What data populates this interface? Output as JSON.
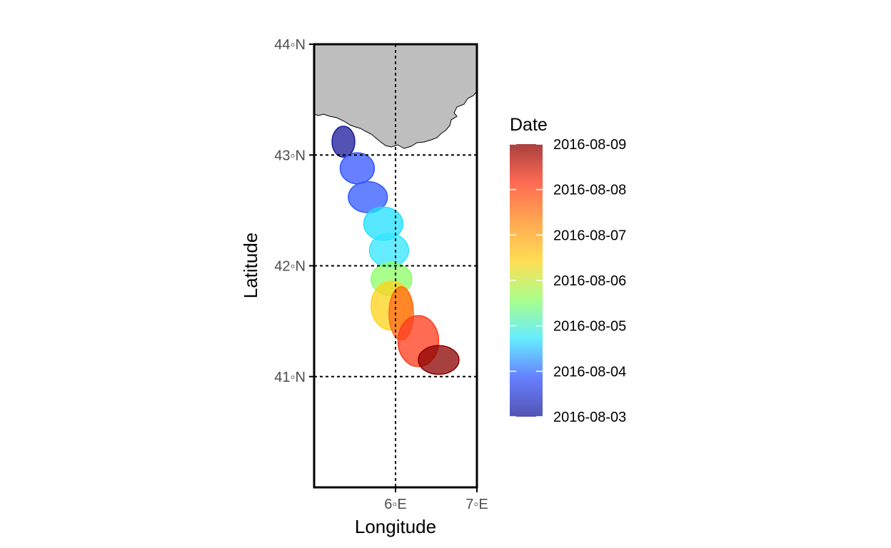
{
  "chart_data": {
    "type": "map",
    "xlabel": "Longitude",
    "ylabel": "Latitude",
    "x_ticks": [
      {
        "value": 6,
        "label": "6◦E"
      },
      {
        "value": 7,
        "label": "7◦E"
      }
    ],
    "y_ticks": [
      {
        "value": 41,
        "label": "41◦N"
      },
      {
        "value": 42,
        "label": "42◦N"
      },
      {
        "value": 43,
        "label": "43◦N"
      },
      {
        "value": 44,
        "label": "44◦N"
      }
    ],
    "xlim": [
      5.0,
      7.0
    ],
    "ylim": [
      40.0,
      44.0
    ],
    "gridlines": "dotted at labeled ticks",
    "land_color": "#bebebe",
    "legend": {
      "title": "Date",
      "placement": "right",
      "labels": [
        "2016-08-09",
        "2016-08-08",
        "2016-08-07",
        "2016-08-06",
        "2016-08-05",
        "2016-08-04",
        "2016-08-03"
      ],
      "colors": [
        "#8b0000",
        "#ff3a1a",
        "#ff8c1a",
        "#ffd21a",
        "#8cff66",
        "#33e6ff",
        "#3355ff",
        "#1a1a99"
      ]
    },
    "polygons": [
      {
        "date": "2016-08-03 06:00",
        "lon": 5.36,
        "lat": 43.12,
        "r_lon": 0.14,
        "r_lat": 0.14,
        "color": "#1a1a99"
      },
      {
        "date": "2016-08-04 00:00",
        "lon": 5.53,
        "lat": 42.88,
        "r_lon": 0.21,
        "r_lat": 0.14,
        "color": "#3355ff"
      },
      {
        "date": "2016-08-04 06:00",
        "lon": 5.66,
        "lat": 42.62,
        "r_lon": 0.24,
        "r_lat": 0.14,
        "color": "#335aff"
      },
      {
        "date": "2016-08-05 00:00",
        "lon": 5.85,
        "lat": 42.38,
        "r_lon": 0.24,
        "r_lat": 0.15,
        "color": "#1fe0ff"
      },
      {
        "date": "2016-08-05 06:00",
        "lon": 5.92,
        "lat": 42.14,
        "r_lon": 0.24,
        "r_lat": 0.15,
        "color": "#33e6ff"
      },
      {
        "date": "2016-08-06 06:00",
        "lon": 5.95,
        "lat": 41.88,
        "r_lon": 0.25,
        "r_lat": 0.15,
        "color": "#8cff66"
      },
      {
        "date": "2016-08-07 00:00",
        "lon": 5.95,
        "lat": 41.64,
        "r_lon": 0.25,
        "r_lat": 0.22,
        "color": "#ffd21a"
      },
      {
        "date": "2016-08-08 00:00",
        "lon": 6.07,
        "lat": 41.57,
        "r_lon": 0.15,
        "r_lat": 0.24,
        "color": "#ff6a1a"
      },
      {
        "date": "2016-08-08 06:00",
        "lon": 6.28,
        "lat": 41.32,
        "r_lon": 0.25,
        "r_lat": 0.23,
        "color": "#ff3a1a"
      },
      {
        "date": "2016-08-09 00:00",
        "lon": 6.53,
        "lat": 41.15,
        "r_lon": 0.25,
        "r_lat": 0.13,
        "color": "#8b0000"
      }
    ]
  }
}
